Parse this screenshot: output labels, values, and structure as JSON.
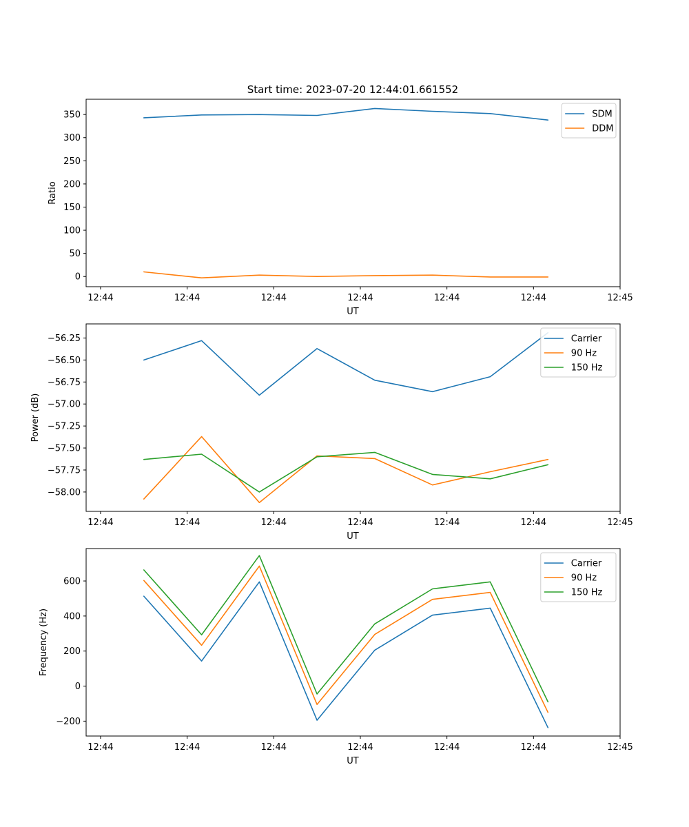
{
  "chart_data": [
    {
      "type": "line",
      "title": "Start time: 2023-07-20 12:44:01.661552",
      "xlabel": "UT",
      "ylabel": "Ratio",
      "xlim": [
        0,
        9.25
      ],
      "ylim": [
        -22,
        383
      ],
      "x": [
        1,
        2,
        3,
        4,
        5,
        6,
        7,
        8
      ],
      "x_ticks": [
        0.25,
        1.75,
        3.25,
        4.75,
        6.25,
        7.75,
        9.25
      ],
      "x_tick_labels": [
        "12:44",
        "12:44",
        "12:44",
        "12:44",
        "12:44",
        "12:44",
        "12:45"
      ],
      "y_ticks": [
        0,
        50,
        100,
        150,
        200,
        250,
        300,
        350
      ],
      "y_tick_labels": [
        "0",
        "50",
        "100",
        "150",
        "200",
        "250",
        "300",
        "350"
      ],
      "legend_position": "top-right",
      "series": [
        {
          "name": "SDM",
          "color": "#1f77b4",
          "values": [
            343,
            349,
            350,
            348,
            363,
            357,
            352,
            338
          ]
        },
        {
          "name": "DDM",
          "color": "#ff7f0e",
          "values": [
            10,
            -3,
            3,
            0,
            2,
            3,
            -1,
            -1
          ]
        }
      ]
    },
    {
      "type": "line",
      "title": "",
      "xlabel": "UT",
      "ylabel": "Power (dB)",
      "xlim": [
        0,
        9.25
      ],
      "ylim": [
        -58.22,
        -56.09
      ],
      "x": [
        1,
        2,
        3,
        4,
        5,
        6,
        7,
        8
      ],
      "x_ticks": [
        0.25,
        1.75,
        3.25,
        4.75,
        6.25,
        7.75,
        9.25
      ],
      "x_tick_labels": [
        "12:44",
        "12:44",
        "12:44",
        "12:44",
        "12:44",
        "12:44",
        "12:45"
      ],
      "y_ticks": [
        -58.0,
        -57.75,
        -57.5,
        -57.25,
        -57.0,
        -56.75,
        -56.5,
        -56.25
      ],
      "y_tick_labels": [
        "−58.00",
        "−57.75",
        "−57.50",
        "−57.25",
        "−57.00",
        "−56.75",
        "−56.50",
        "−56.25"
      ],
      "legend_position": "top-right",
      "series": [
        {
          "name": "Carrier",
          "color": "#1f77b4",
          "values": [
            -56.5,
            -56.28,
            -56.9,
            -56.37,
            -56.73,
            -56.86,
            -56.69,
            -56.19
          ]
        },
        {
          "name": "90 Hz",
          "color": "#ff7f0e",
          "values": [
            -58.08,
            -57.37,
            -58.12,
            -57.59,
            -57.62,
            -57.92,
            -57.77,
            -57.63
          ]
        },
        {
          "name": "150 Hz",
          "color": "#2ca02c",
          "values": [
            -57.63,
            -57.57,
            -58.0,
            -57.6,
            -57.55,
            -57.8,
            -57.85,
            -57.69
          ]
        }
      ]
    },
    {
      "type": "line",
      "title": "",
      "xlabel": "UT",
      "ylabel": "Frequency (Hz)",
      "xlim": [
        0,
        9.25
      ],
      "ylim": [
        -285,
        785
      ],
      "x": [
        1,
        2,
        3,
        4,
        5,
        6,
        7,
        8
      ],
      "x_ticks": [
        0.25,
        1.75,
        3.25,
        4.75,
        6.25,
        7.75,
        9.25
      ],
      "x_tick_labels": [
        "12:44",
        "12:44",
        "12:44",
        "12:44",
        "12:44",
        "12:44",
        "12:45"
      ],
      "y_ticks": [
        -200,
        0,
        200,
        400,
        600
      ],
      "y_tick_labels": [
        "−200",
        "0",
        "200",
        "400",
        "600"
      ],
      "legend_position": "top-right",
      "series": [
        {
          "name": "Carrier",
          "color": "#1f77b4",
          "values": [
            513,
            143,
            595,
            -195,
            205,
            405,
            445,
            -237
          ]
        },
        {
          "name": "90 Hz",
          "color": "#ff7f0e",
          "values": [
            603,
            233,
            685,
            -105,
            295,
            495,
            535,
            -150
          ]
        },
        {
          "name": "150 Hz",
          "color": "#2ca02c",
          "values": [
            663,
            293,
            745,
            -45,
            355,
            555,
            595,
            -90
          ]
        }
      ]
    }
  ]
}
